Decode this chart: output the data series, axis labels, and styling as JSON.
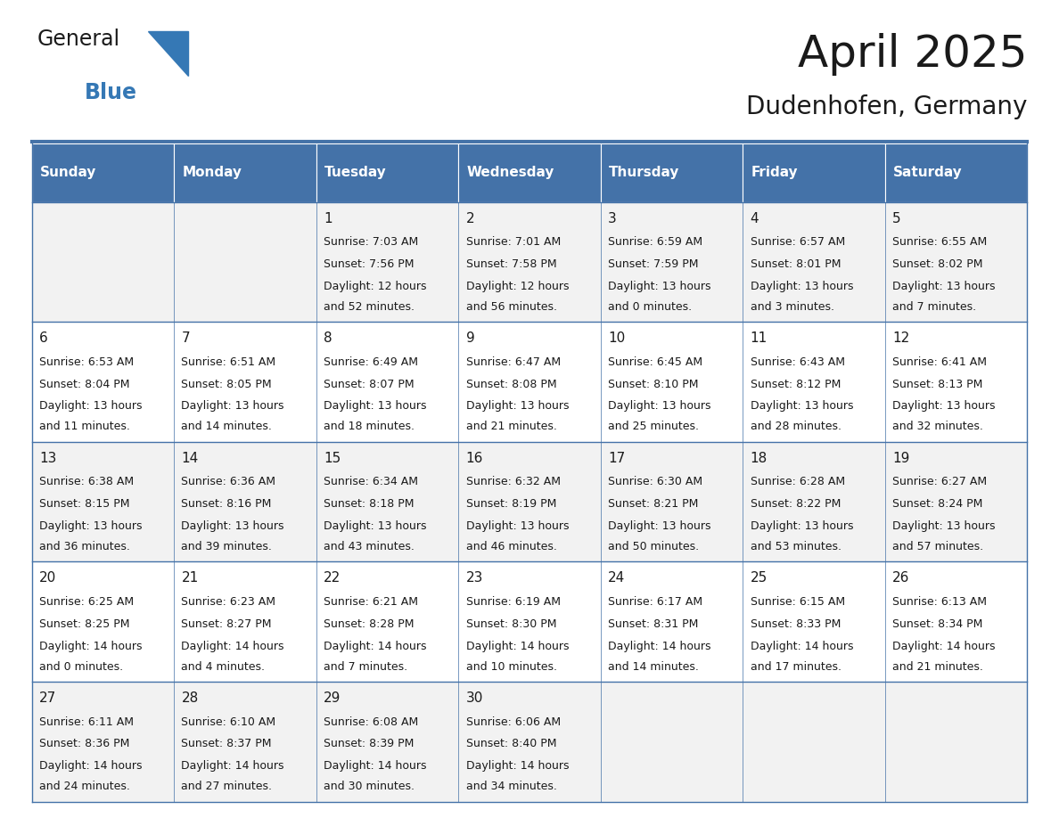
{
  "title": "April 2025",
  "subtitle": "Dudenhofen, Germany",
  "header_bg": "#4472a8",
  "header_text_color": "#ffffff",
  "row_bg_light": "#f2f2f2",
  "row_bg_white": "#ffffff",
  "cell_border_color": "#4472a8",
  "row_divider_color": "#4472a8",
  "days_of_week": [
    "Sunday",
    "Monday",
    "Tuesday",
    "Wednesday",
    "Thursday",
    "Friday",
    "Saturday"
  ],
  "calendar_data": [
    [
      {
        "day": "",
        "sunrise": "",
        "sunset": "",
        "daylight1": "",
        "daylight2": ""
      },
      {
        "day": "",
        "sunrise": "",
        "sunset": "",
        "daylight1": "",
        "daylight2": ""
      },
      {
        "day": "1",
        "sunrise": "Sunrise: 7:03 AM",
        "sunset": "Sunset: 7:56 PM",
        "daylight1": "Daylight: 12 hours",
        "daylight2": "and 52 minutes."
      },
      {
        "day": "2",
        "sunrise": "Sunrise: 7:01 AM",
        "sunset": "Sunset: 7:58 PM",
        "daylight1": "Daylight: 12 hours",
        "daylight2": "and 56 minutes."
      },
      {
        "day": "3",
        "sunrise": "Sunrise: 6:59 AM",
        "sunset": "Sunset: 7:59 PM",
        "daylight1": "Daylight: 13 hours",
        "daylight2": "and 0 minutes."
      },
      {
        "day": "4",
        "sunrise": "Sunrise: 6:57 AM",
        "sunset": "Sunset: 8:01 PM",
        "daylight1": "Daylight: 13 hours",
        "daylight2": "and 3 minutes."
      },
      {
        "day": "5",
        "sunrise": "Sunrise: 6:55 AM",
        "sunset": "Sunset: 8:02 PM",
        "daylight1": "Daylight: 13 hours",
        "daylight2": "and 7 minutes."
      }
    ],
    [
      {
        "day": "6",
        "sunrise": "Sunrise: 6:53 AM",
        "sunset": "Sunset: 8:04 PM",
        "daylight1": "Daylight: 13 hours",
        "daylight2": "and 11 minutes."
      },
      {
        "day": "7",
        "sunrise": "Sunrise: 6:51 AM",
        "sunset": "Sunset: 8:05 PM",
        "daylight1": "Daylight: 13 hours",
        "daylight2": "and 14 minutes."
      },
      {
        "day": "8",
        "sunrise": "Sunrise: 6:49 AM",
        "sunset": "Sunset: 8:07 PM",
        "daylight1": "Daylight: 13 hours",
        "daylight2": "and 18 minutes."
      },
      {
        "day": "9",
        "sunrise": "Sunrise: 6:47 AM",
        "sunset": "Sunset: 8:08 PM",
        "daylight1": "Daylight: 13 hours",
        "daylight2": "and 21 minutes."
      },
      {
        "day": "10",
        "sunrise": "Sunrise: 6:45 AM",
        "sunset": "Sunset: 8:10 PM",
        "daylight1": "Daylight: 13 hours",
        "daylight2": "and 25 minutes."
      },
      {
        "day": "11",
        "sunrise": "Sunrise: 6:43 AM",
        "sunset": "Sunset: 8:12 PM",
        "daylight1": "Daylight: 13 hours",
        "daylight2": "and 28 minutes."
      },
      {
        "day": "12",
        "sunrise": "Sunrise: 6:41 AM",
        "sunset": "Sunset: 8:13 PM",
        "daylight1": "Daylight: 13 hours",
        "daylight2": "and 32 minutes."
      }
    ],
    [
      {
        "day": "13",
        "sunrise": "Sunrise: 6:38 AM",
        "sunset": "Sunset: 8:15 PM",
        "daylight1": "Daylight: 13 hours",
        "daylight2": "and 36 minutes."
      },
      {
        "day": "14",
        "sunrise": "Sunrise: 6:36 AM",
        "sunset": "Sunset: 8:16 PM",
        "daylight1": "Daylight: 13 hours",
        "daylight2": "and 39 minutes."
      },
      {
        "day": "15",
        "sunrise": "Sunrise: 6:34 AM",
        "sunset": "Sunset: 8:18 PM",
        "daylight1": "Daylight: 13 hours",
        "daylight2": "and 43 minutes."
      },
      {
        "day": "16",
        "sunrise": "Sunrise: 6:32 AM",
        "sunset": "Sunset: 8:19 PM",
        "daylight1": "Daylight: 13 hours",
        "daylight2": "and 46 minutes."
      },
      {
        "day": "17",
        "sunrise": "Sunrise: 6:30 AM",
        "sunset": "Sunset: 8:21 PM",
        "daylight1": "Daylight: 13 hours",
        "daylight2": "and 50 minutes."
      },
      {
        "day": "18",
        "sunrise": "Sunrise: 6:28 AM",
        "sunset": "Sunset: 8:22 PM",
        "daylight1": "Daylight: 13 hours",
        "daylight2": "and 53 minutes."
      },
      {
        "day": "19",
        "sunrise": "Sunrise: 6:27 AM",
        "sunset": "Sunset: 8:24 PM",
        "daylight1": "Daylight: 13 hours",
        "daylight2": "and 57 minutes."
      }
    ],
    [
      {
        "day": "20",
        "sunrise": "Sunrise: 6:25 AM",
        "sunset": "Sunset: 8:25 PM",
        "daylight1": "Daylight: 14 hours",
        "daylight2": "and 0 minutes."
      },
      {
        "day": "21",
        "sunrise": "Sunrise: 6:23 AM",
        "sunset": "Sunset: 8:27 PM",
        "daylight1": "Daylight: 14 hours",
        "daylight2": "and 4 minutes."
      },
      {
        "day": "22",
        "sunrise": "Sunrise: 6:21 AM",
        "sunset": "Sunset: 8:28 PM",
        "daylight1": "Daylight: 14 hours",
        "daylight2": "and 7 minutes."
      },
      {
        "day": "23",
        "sunrise": "Sunrise: 6:19 AM",
        "sunset": "Sunset: 8:30 PM",
        "daylight1": "Daylight: 14 hours",
        "daylight2": "and 10 minutes."
      },
      {
        "day": "24",
        "sunrise": "Sunrise: 6:17 AM",
        "sunset": "Sunset: 8:31 PM",
        "daylight1": "Daylight: 14 hours",
        "daylight2": "and 14 minutes."
      },
      {
        "day": "25",
        "sunrise": "Sunrise: 6:15 AM",
        "sunset": "Sunset: 8:33 PM",
        "daylight1": "Daylight: 14 hours",
        "daylight2": "and 17 minutes."
      },
      {
        "day": "26",
        "sunrise": "Sunrise: 6:13 AM",
        "sunset": "Sunset: 8:34 PM",
        "daylight1": "Daylight: 14 hours",
        "daylight2": "and 21 minutes."
      }
    ],
    [
      {
        "day": "27",
        "sunrise": "Sunrise: 6:11 AM",
        "sunset": "Sunset: 8:36 PM",
        "daylight1": "Daylight: 14 hours",
        "daylight2": "and 24 minutes."
      },
      {
        "day": "28",
        "sunrise": "Sunrise: 6:10 AM",
        "sunset": "Sunset: 8:37 PM",
        "daylight1": "Daylight: 14 hours",
        "daylight2": "and 27 minutes."
      },
      {
        "day": "29",
        "sunrise": "Sunrise: 6:08 AM",
        "sunset": "Sunset: 8:39 PM",
        "daylight1": "Daylight: 14 hours",
        "daylight2": "and 30 minutes."
      },
      {
        "day": "30",
        "sunrise": "Sunrise: 6:06 AM",
        "sunset": "Sunset: 8:40 PM",
        "daylight1": "Daylight: 14 hours",
        "daylight2": "and 34 minutes."
      },
      {
        "day": "",
        "sunrise": "",
        "sunset": "",
        "daylight1": "",
        "daylight2": ""
      },
      {
        "day": "",
        "sunrise": "",
        "sunset": "",
        "daylight1": "",
        "daylight2": ""
      },
      {
        "day": "",
        "sunrise": "",
        "sunset": "",
        "daylight1": "",
        "daylight2": ""
      }
    ]
  ],
  "logo_general_color": "#1a1a1a",
  "logo_blue_color": "#3578b5",
  "title_fontsize": 36,
  "subtitle_fontsize": 20,
  "header_fontsize": 11,
  "cell_day_fontsize": 11,
  "cell_text_fontsize": 9
}
